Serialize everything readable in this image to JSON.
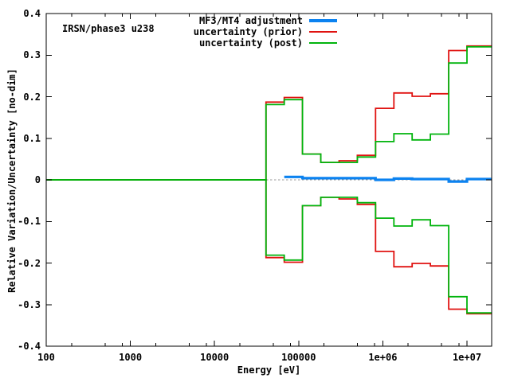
{
  "chart": {
    "annotation_label": "IRSN/phase3 u238",
    "xlabel": "Energy [eV]",
    "ylabel": "Relative Variation/Uncertainty [no-dim]",
    "colors": {
      "adjustment": "#0b82f0",
      "prior": "#e01210",
      "post": "#00b40c",
      "zero_line": "#999999",
      "axis": "#000000",
      "background": "#ffffff"
    },
    "legend": {
      "position": "top-center",
      "entries": [
        {
          "label": "MF3/MT4 adjustment",
          "series": "adjustment",
          "thick": true
        },
        {
          "label": "uncertainty (prior)",
          "series": "prior",
          "thick": false
        },
        {
          "label": "uncertainty (post)",
          "series": "post",
          "thick": false
        }
      ]
    },
    "x_axis": {
      "scale": "log",
      "min": 100,
      "max": 19640000,
      "tick_values": [
        100,
        1000,
        10000,
        100000,
        1000000,
        10000000
      ],
      "tick_labels": [
        "100",
        "1000",
        "10000",
        "100000",
        "1e+06",
        "1e+07"
      ],
      "minor_tick_multipliers": [
        2,
        5,
        8
      ]
    },
    "y_axis": {
      "min": -0.4,
      "max": 0.4,
      "tick_values": [
        -0.4,
        -0.3,
        -0.2,
        -0.1,
        0,
        0.1,
        0.2,
        0.3,
        0.4
      ],
      "tick_labels": [
        "-0.4",
        "-0.3",
        "-0.2",
        "-0.1",
        "0",
        "0.1",
        "0.2",
        "0.3",
        "0.4"
      ]
    },
    "chart_data": {
      "type": "line",
      "subtype": "step-histogram",
      "x_scale": "log",
      "annotation": "IRSN/phase3 u238",
      "xlabel": "Energy [eV]",
      "ylabel": "Relative Variation/Uncertainty [no-dim]",
      "xlim": [
        100,
        19640000
      ],
      "ylim": [
        -0.4,
        0.4
      ],
      "grid": false,
      "legend_position": "top-center",
      "zero_line": {
        "style": "dashed",
        "color": "#999999",
        "from_eV": 40868,
        "to_eV": 19640000,
        "value": 0
      },
      "bin_edges_eV": [
        40868,
        67379,
        111090,
        183160,
        301970,
        497870,
        820850,
        1353400,
        2231300,
        3678800,
        6065300,
        10000000,
        19640000
      ],
      "series": [
        {
          "name": "uncertainty (prior)",
          "role": "prior",
          "zero_until_eV": 40868,
          "upper": [
            0.187,
            0.198,
            0.062,
            0.042,
            0.046,
            0.059,
            0.172,
            0.209,
            0.201,
            0.207,
            0.311,
            0.322
          ],
          "lower": [
            -0.187,
            -0.198,
            -0.062,
            -0.042,
            -0.046,
            -0.059,
            -0.172,
            -0.209,
            -0.201,
            -0.207,
            -0.311,
            -0.322
          ]
        },
        {
          "name": "uncertainty (post)",
          "role": "post",
          "zero_until_eV": 40868,
          "upper": [
            0.181,
            0.193,
            0.062,
            0.042,
            0.042,
            0.055,
            0.092,
            0.111,
            0.096,
            0.11,
            0.281,
            0.32
          ],
          "lower": [
            -0.181,
            -0.193,
            -0.062,
            -0.042,
            -0.042,
            -0.055,
            -0.092,
            -0.111,
            -0.096,
            -0.11,
            -0.281,
            -0.32
          ]
        },
        {
          "name": "MF3/MT4 adjustment",
          "role": "adjustment",
          "edges_eV": [
            67379,
            111090,
            820850,
            1353400,
            2231300,
            6065300,
            10000000,
            19640000
          ],
          "values": [
            0.007,
            0.004,
            0.0,
            0.003,
            0.002,
            -0.004,
            0.002
          ]
        }
      ]
    }
  }
}
